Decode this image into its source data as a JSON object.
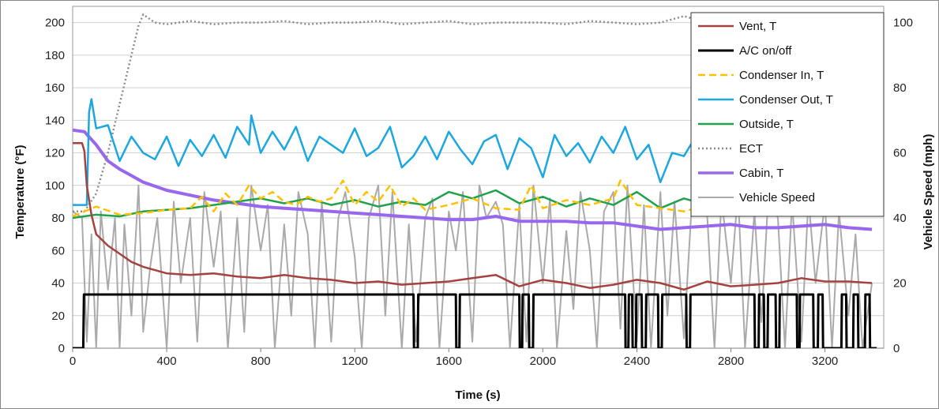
{
  "chart_data": {
    "type": "line",
    "title": "",
    "xlabel": "Time (s)",
    "ylabel": "Temperature (°F)",
    "y2label": "Vehicle Speed (mph)",
    "xlim": [
      0,
      3450
    ],
    "ylim": [
      0,
      210
    ],
    "y2lim": [
      0,
      105
    ],
    "xticks": [
      "0",
      "400",
      "800",
      "1200",
      "1600",
      "2000",
      "2400",
      "2800",
      "3200"
    ],
    "xtick_values": [
      0,
      400,
      800,
      1200,
      1600,
      2000,
      2400,
      2800,
      3200
    ],
    "yticks": [
      "0",
      "20",
      "40",
      "60",
      "80",
      "100",
      "120",
      "140",
      "160",
      "180",
      "200"
    ],
    "ytick_values": [
      0,
      20,
      40,
      60,
      80,
      100,
      120,
      140,
      160,
      180,
      200
    ],
    "y2ticks": [
      "0",
      "20",
      "40",
      "60",
      "80",
      "100"
    ],
    "y2tick_values": [
      0,
      20,
      40,
      60,
      80,
      100
    ],
    "grid": true,
    "legend_position": "top-right",
    "series": [
      {
        "name": "Vent, T",
        "axis": "left",
        "color": "#A5423F",
        "style": "solid",
        "x": [
          0,
          40,
          50,
          60,
          80,
          100,
          150,
          200,
          250,
          300,
          400,
          500,
          600,
          700,
          800,
          900,
          1000,
          1100,
          1200,
          1300,
          1400,
          1500,
          1600,
          1700,
          1800,
          1900,
          2000,
          2100,
          2200,
          2300,
          2400,
          2500,
          2600,
          2700,
          2800,
          2900,
          3000,
          3100,
          3200,
          3300,
          3400
        ],
        "values": [
          126,
          126,
          121,
          100,
          82,
          70,
          63,
          58,
          53,
          50,
          46,
          45,
          46,
          44,
          43,
          45,
          43,
          42,
          40,
          41,
          39,
          40,
          41,
          43,
          45,
          38,
          42,
          40,
          37,
          39,
          42,
          40,
          36,
          41,
          38,
          39,
          40,
          43,
          41,
          41,
          40
        ]
      },
      {
        "name": "A/C on/off",
        "axis": "left",
        "color": "#000000",
        "style": "solid",
        "x": [
          0,
          45,
          48,
          1450,
          1452,
          1468,
          1470,
          1630,
          1632,
          1645,
          1647,
          1900,
          1902,
          1912,
          1914,
          1940,
          1942,
          1958,
          1960,
          2350,
          2352,
          2364,
          2366,
          2380,
          2382,
          2396,
          2398,
          2420,
          2422,
          2438,
          2440,
          2490,
          2492,
          2506,
          2508,
          2610,
          2612,
          2626,
          2628,
          2900,
          2902,
          2918,
          2920,
          2940,
          2942,
          2956,
          2958,
          2990,
          2992,
          3006,
          3008,
          3080,
          3082,
          3092,
          3094,
          3150,
          3152,
          3170,
          3172,
          3190,
          3192,
          3270,
          3272,
          3290,
          3292,
          3320,
          3322,
          3340,
          3342,
          3370,
          3372,
          3390,
          3392,
          3420
        ],
        "values": [
          0,
          0,
          33,
          33,
          0,
          0,
          33,
          33,
          0,
          0,
          33,
          33,
          0,
          0,
          33,
          33,
          0,
          0,
          33,
          33,
          0,
          0,
          33,
          33,
          0,
          0,
          33,
          33,
          0,
          0,
          33,
          33,
          0,
          0,
          33,
          33,
          0,
          0,
          33,
          33,
          0,
          0,
          33,
          33,
          0,
          0,
          33,
          33,
          0,
          0,
          33,
          33,
          0,
          0,
          33,
          33,
          0,
          0,
          33,
          33,
          0,
          0,
          33,
          33,
          0,
          0,
          33,
          33,
          0,
          0,
          33,
          33,
          0,
          0
        ]
      },
      {
        "name": "Condenser In, T",
        "axis": "left",
        "color": "#FFC000",
        "style": "dashed",
        "x": [
          0,
          100,
          200,
          300,
          400,
          500,
          550,
          600,
          650,
          700,
          750,
          800,
          850,
          900,
          950,
          1000,
          1050,
          1100,
          1150,
          1200,
          1250,
          1300,
          1350,
          1400,
          1450,
          1500,
          1600,
          1700,
          1800,
          1900,
          1950,
          2000,
          2100,
          2200,
          2300,
          2330,
          2400,
          2500,
          2600,
          2700,
          2800,
          2900,
          3000,
          3100,
          3200,
          3300,
          3400
        ],
        "values": [
          81,
          87,
          82,
          83,
          85,
          86,
          93,
          84,
          95,
          88,
          100,
          92,
          96,
          90,
          88,
          93,
          90,
          92,
          103,
          88,
          96,
          90,
          100,
          87,
          92,
          85,
          88,
          92,
          86,
          85,
          100,
          86,
          91,
          88,
          92,
          103,
          88,
          86,
          84,
          88,
          86,
          85,
          90,
          86,
          85,
          84,
          85
        ]
      },
      {
        "name": "Condenser Out, T",
        "axis": "left",
        "color": "#1BA8E0",
        "style": "solid",
        "x": [
          0,
          60,
          70,
          80,
          100,
          150,
          200,
          250,
          300,
          350,
          400,
          450,
          500,
          550,
          600,
          650,
          700,
          750,
          760,
          800,
          850,
          900,
          950,
          1000,
          1050,
          1100,
          1150,
          1200,
          1250,
          1300,
          1350,
          1400,
          1450,
          1500,
          1550,
          1600,
          1650,
          1700,
          1750,
          1800,
          1850,
          1900,
          1950,
          2000,
          2050,
          2100,
          2150,
          2200,
          2250,
          2300,
          2350,
          2400,
          2450,
          2500,
          2550,
          2600,
          2650,
          2700,
          2750,
          2800,
          2850,
          2900,
          2950,
          3000,
          3050,
          3100,
          3150,
          3200,
          3250,
          3300,
          3350,
          3400
        ],
        "values": [
          88,
          88,
          145,
          153,
          135,
          137,
          115,
          130,
          120,
          116,
          130,
          112,
          128,
          118,
          131,
          117,
          136,
          125,
          143,
          120,
          133,
          122,
          136,
          115,
          130,
          125,
          120,
          135,
          118,
          123,
          136,
          111,
          118,
          130,
          116,
          133,
          122,
          113,
          127,
          131,
          110,
          129,
          123,
          105,
          131,
          118,
          126,
          114,
          130,
          120,
          136,
          116,
          125,
          102,
          120,
          118,
          130,
          116,
          122,
          115,
          128,
          110,
          125,
          118,
          130,
          114,
          122,
          108,
          120,
          112,
          118,
          124
        ]
      },
      {
        "name": "Outside, T",
        "axis": "left",
        "color": "#1FA34A",
        "style": "solid",
        "x": [
          0,
          100,
          200,
          300,
          400,
          500,
          600,
          700,
          800,
          900,
          1000,
          1100,
          1200,
          1300,
          1400,
          1500,
          1600,
          1700,
          1800,
          1900,
          2000,
          2100,
          2200,
          2300,
          2400,
          2500,
          2600,
          2700,
          2800,
          2900,
          3000,
          3100,
          3200,
          3300,
          3400
        ],
        "values": [
          80,
          82,
          81,
          84,
          85,
          86,
          88,
          90,
          92,
          89,
          92,
          88,
          91,
          87,
          90,
          88,
          96,
          92,
          97,
          89,
          93,
          87,
          92,
          88,
          96,
          86,
          92,
          88,
          86,
          90,
          88,
          86,
          87,
          85,
          85
        ]
      },
      {
        "name": "ECT",
        "axis": "left",
        "color": "#8C8C8C",
        "style": "dotted",
        "x": [
          0,
          50,
          100,
          150,
          200,
          250,
          280,
          300,
          350,
          400,
          500,
          600,
          700,
          800,
          900,
          1000,
          1100,
          1200,
          1300,
          1400,
          1500,
          1600,
          1700,
          1800,
          1900,
          2000,
          2100,
          2200,
          2300,
          2400,
          2500,
          2600,
          2700,
          2800,
          2900,
          3000,
          3100,
          3200,
          3300,
          3400
        ],
        "values": [
          84,
          84,
          95,
          120,
          150,
          180,
          198,
          205,
          200,
          199,
          201,
          199,
          200,
          200,
          201,
          199,
          200,
          200,
          201,
          199,
          200,
          201,
          199,
          200,
          200,
          200,
          199,
          201,
          200,
          199,
          200,
          204,
          200,
          200,
          201,
          199,
          200,
          200,
          199,
          200
        ]
      },
      {
        "name": "Cabin, T",
        "axis": "left",
        "color": "#9966EE",
        "style": "solid",
        "x": [
          0,
          50,
          100,
          150,
          200,
          250,
          300,
          400,
          500,
          600,
          700,
          800,
          900,
          1000,
          1100,
          1200,
          1300,
          1400,
          1500,
          1600,
          1700,
          1800,
          1900,
          2000,
          2100,
          2200,
          2300,
          2400,
          2500,
          2600,
          2700,
          2800,
          2900,
          3000,
          3100,
          3200,
          3300,
          3400
        ],
        "values": [
          134,
          133,
          125,
          115,
          110,
          106,
          102,
          97,
          94,
          91,
          89,
          87,
          86,
          85,
          84,
          83,
          82,
          81,
          80,
          79,
          79,
          81,
          78,
          78,
          78,
          77,
          77,
          75,
          73,
          74,
          75,
          76,
          74,
          74,
          75,
          76,
          74,
          73
        ]
      },
      {
        "name": "Vehicle Speed",
        "axis": "right",
        "color": "#AAAAAA",
        "style": "solid",
        "x": [
          0,
          40,
          60,
          80,
          100,
          120,
          150,
          180,
          200,
          220,
          250,
          280,
          300,
          330,
          360,
          400,
          430,
          460,
          500,
          530,
          560,
          600,
          630,
          660,
          700,
          730,
          760,
          800,
          830,
          860,
          900,
          930,
          960,
          1000,
          1030,
          1060,
          1100,
          1130,
          1160,
          1200,
          1230,
          1260,
          1300,
          1330,
          1360,
          1400,
          1430,
          1460,
          1500,
          1530,
          1560,
          1600,
          1630,
          1660,
          1700,
          1730,
          1760,
          1800,
          1830,
          1860,
          1900,
          1930,
          1960,
          2000,
          2030,
          2060,
          2100,
          2130,
          2160,
          2200,
          2230,
          2260,
          2300,
          2330,
          2360,
          2400,
          2430,
          2460,
          2500,
          2530,
          2560,
          2600,
          2630,
          2660,
          2700,
          2730,
          2760,
          2800,
          2830,
          2860,
          2900,
          2930,
          2960,
          3000,
          3030,
          3060,
          3100,
          3130,
          3160,
          3200,
          3230,
          3260,
          3300,
          3330,
          3360,
          3400
        ],
        "values": [
          42,
          40,
          2,
          35,
          0,
          42,
          18,
          40,
          0,
          38,
          10,
          50,
          5,
          25,
          40,
          0,
          45,
          20,
          40,
          2,
          48,
          25,
          42,
          0,
          40,
          5,
          50,
          30,
          44,
          0,
          38,
          10,
          48,
          35,
          0,
          45,
          2,
          40,
          48,
          28,
          0,
          40,
          50,
          10,
          48,
          0,
          38,
          2,
          40,
          46,
          0,
          42,
          30,
          48,
          2,
          50,
          40,
          45,
          38,
          0,
          44,
          2,
          50,
          20,
          46,
          0,
          36,
          12,
          48,
          30,
          0,
          42,
          48,
          6,
          50,
          2,
          44,
          0,
          48,
          10,
          45,
          3,
          40,
          50,
          40,
          0,
          46,
          20,
          48,
          0,
          42,
          8,
          48,
          40,
          0,
          45,
          2,
          46,
          20,
          45,
          0,
          42,
          10,
          35,
          0,
          20
        ]
      }
    ]
  }
}
